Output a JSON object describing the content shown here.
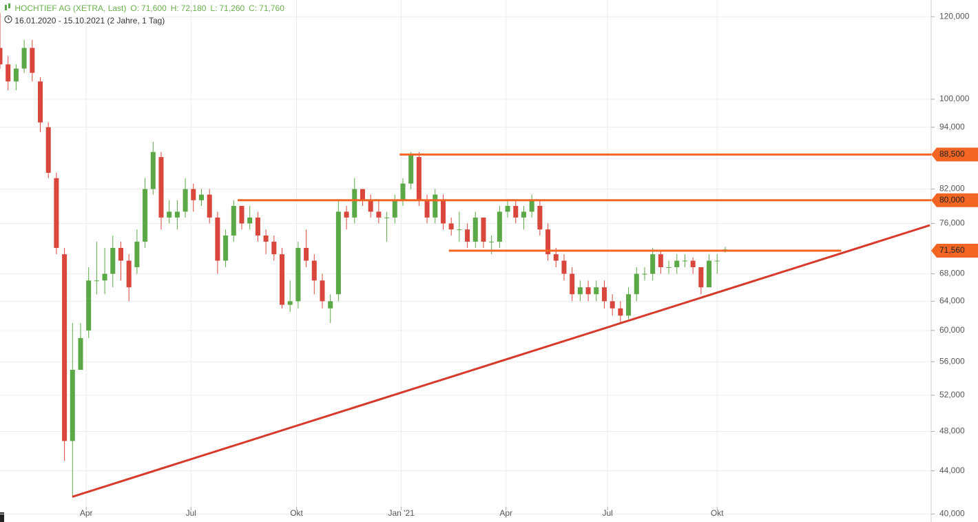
{
  "chart_data": {
    "type": "candlestick",
    "title": "HOCHTIEF AG (XETRA, Last)",
    "quote": [
      {
        "name": "O:",
        "value": 71.6,
        "label": "71,600"
      },
      {
        "name": "H:",
        "value": 72.18,
        "label": "72,180"
      },
      {
        "name": "L:",
        "value": 71.26,
        "label": "71,260"
      },
      {
        "name": "C:",
        "value": 71.76,
        "label": "71,760"
      }
    ],
    "subtitle": "16.01.2020 - 15.10.2021   (2 Jahre, 1 Tag)",
    "log_scale": true,
    "grid": true,
    "up_color": "#5aa846",
    "down_color": "#d9463c",
    "xlim": [
      0,
      115.56
    ],
    "xticks": [
      {
        "value": 10.7,
        "label": "Apr"
      },
      {
        "value": 23.7,
        "label": "Jul"
      },
      {
        "value": 36.8,
        "label": "Okt"
      },
      {
        "value": 49.8,
        "label": "Jan '21"
      },
      {
        "value": 62.8,
        "label": "Apr"
      },
      {
        "value": 75.4,
        "label": "Jul"
      },
      {
        "value": 89.0,
        "label": "Okt"
      }
    ],
    "ylim": [
      39.3,
      124.5
    ],
    "yticks": [
      {
        "value": 40,
        "label": "40,000"
      },
      {
        "value": 44,
        "label": "44,000"
      },
      {
        "value": 48,
        "label": "48,000"
      },
      {
        "value": 52,
        "label": "52,000"
      },
      {
        "value": 56,
        "label": "56,000"
      },
      {
        "value": 60,
        "label": "60,000"
      },
      {
        "value": 64,
        "label": "64,000"
      },
      {
        "value": 68,
        "label": "68,000"
      },
      {
        "value": 76,
        "label": "76,000"
      },
      {
        "value": 82,
        "label": "82,000"
      },
      {
        "value": 94,
        "label": "94,000"
      },
      {
        "value": 100,
        "label": "100,000"
      },
      {
        "value": 120,
        "label": "120,000"
      }
    ],
    "open": [
      112,
      108,
      104,
      107,
      112,
      104,
      94,
      84,
      71,
      47,
      55,
      60,
      67,
      67,
      68,
      72,
      70,
      69,
      73,
      82,
      88,
      77,
      77,
      78,
      82,
      80,
      81,
      77,
      70,
      74,
      79,
      76,
      77,
      74,
      73,
      71,
      63.5,
      64,
      72,
      70,
      67,
      63,
      65,
      78,
      77,
      82,
      80,
      78,
      77,
      77,
      80,
      83,
      88,
      80,
      77,
      80,
      76,
      75,
      75,
      73,
      77,
      73,
      73,
      78,
      79,
      77,
      78,
      79,
      75,
      71,
      70,
      68,
      65,
      66,
      65,
      66,
      64,
      63,
      62,
      65,
      68,
      68,
      71,
      69,
      69,
      70,
      70,
      69,
      66,
      70,
      71.6
    ],
    "high": [
      121,
      110,
      108,
      114,
      114,
      105,
      95,
      85,
      72,
      61,
      61,
      69,
      73,
      72,
      74,
      73,
      71,
      75,
      84,
      91,
      89,
      80,
      80,
      84,
      83,
      82,
      82,
      78,
      75,
      80,
      79,
      79,
      78,
      75,
      74,
      72,
      67,
      73,
      75,
      71,
      68,
      65,
      80,
      79,
      84,
      82,
      81,
      80,
      78,
      81,
      84,
      89,
      89,
      81,
      82,
      81,
      77,
      78,
      76,
      78,
      77,
      74,
      79,
      80,
      80,
      79,
      81,
      80,
      76,
      72,
      71,
      69,
      67,
      67,
      67,
      67,
      65,
      64,
      66,
      69,
      69,
      72,
      71.5,
      70,
      71,
      71,
      70.5,
      69,
      71,
      71,
      72.18
    ],
    "low": [
      107,
      102,
      102,
      106,
      104,
      93,
      84,
      71,
      45,
      41.5,
      55,
      59,
      65,
      65,
      66,
      67,
      64,
      68,
      72,
      81,
      75,
      76,
      75,
      77,
      78,
      79,
      76,
      68,
      69,
      73,
      75,
      75,
      73,
      71,
      70,
      63,
      62.5,
      63,
      69,
      65,
      63,
      61,
      64,
      75,
      76,
      79,
      77,
      76,
      73,
      76,
      79,
      82,
      79,
      76,
      76,
      75,
      74,
      73,
      72,
      72,
      72,
      71,
      72,
      77,
      76,
      75,
      77,
      74,
      70,
      69,
      67,
      64,
      64,
      64,
      64,
      63,
      62,
      61,
      61.5,
      64,
      67,
      67,
      68,
      68,
      68,
      69,
      68,
      65,
      66,
      68,
      71.26
    ],
    "close": [
      108,
      104,
      107,
      112,
      106,
      95,
      85,
      72,
      47,
      55,
      59,
      67,
      67,
      68,
      72,
      70,
      66,
      73,
      82,
      89,
      77,
      78,
      78,
      82,
      80,
      81,
      77,
      70,
      74,
      79,
      76,
      77,
      74,
      73,
      71,
      63.5,
      64,
      72,
      70,
      67,
      64,
      64,
      78,
      77,
      82,
      80,
      78,
      77,
      77,
      80,
      83,
      88.5,
      80,
      77,
      81,
      76,
      75,
      75,
      73,
      77,
      73,
      73,
      78,
      79,
      77,
      78,
      80,
      75,
      71,
      70,
      68,
      65,
      66,
      65,
      66,
      64,
      63,
      62,
      65,
      68,
      68,
      71,
      69,
      69,
      70,
      70,
      69,
      66,
      70,
      70,
      71.76
    ],
    "levels": [
      {
        "value": 88.5,
        "label": "88,500",
        "from": 49.6
      },
      {
        "value": 80,
        "label": "80,000",
        "from": 29.5
      },
      {
        "value": 71.56,
        "label": "71,560",
        "from": 55.7,
        "to": 104.4
      }
    ],
    "level_color": "#f26522",
    "trendline": {
      "x": [
        8.97,
        115.4
      ],
      "y": [
        41.55,
        75.7
      ],
      "color": "#d63a2b"
    }
  }
}
